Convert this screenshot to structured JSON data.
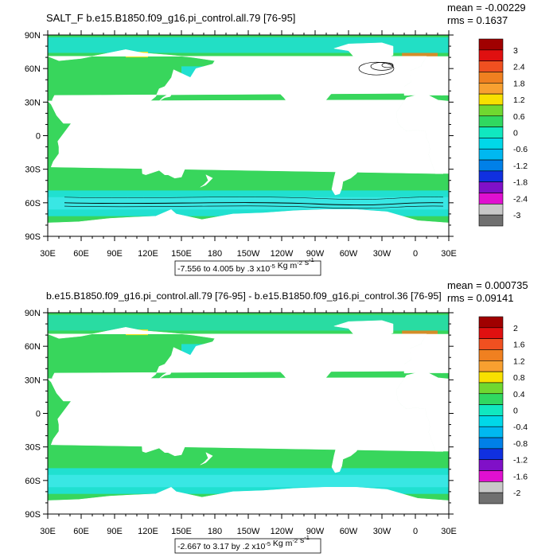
{
  "panels": [
    {
      "title": "SALT_F b.e15.B1850.f09_g16.pi_control.all.79 [76-95]",
      "mean": "mean = -0.00229",
      "rms": "rms = 0.1637",
      "range_note": "-7.556 to 4.005 by .3 x10",
      "units_tail": "Kg m",
      "units_exp": "-2",
      "units_s": "s",
      "legend_labels": [
        "3",
        "2.4",
        "1.8",
        "1.2",
        "0.6",
        "0",
        "-0.6",
        "-1.2",
        "-1.8",
        "-2.4",
        "-3"
      ]
    },
    {
      "title": "b.e15.B1850.f09_g16.pi_control.all.79 [76-95] - b.e15.B1850.f09_g16.pi_control.36 [76-95]",
      "mean": "mean = 0.000735",
      "rms": "rms = 0.09141",
      "range_note": "-2.667 to 3.17 by .2 x10",
      "units_tail": "Kg m",
      "units_exp": "-2",
      "units_s": "s",
      "legend_labels": [
        "2",
        "1.6",
        "1.2",
        "0.8",
        "0.4",
        "0",
        "-0.4",
        "-0.8",
        "-1.2",
        "-1.6",
        "-2"
      ]
    }
  ],
  "lat_labels": [
    "90N",
    "60N",
    "30N",
    "0",
    "30S",
    "60S",
    "90S"
  ],
  "lon_labels": [
    "30E",
    "60E",
    "90E",
    "120E",
    "150E",
    "180",
    "150W",
    "120W",
    "90W",
    "60W",
    "30W",
    "0",
    "30E"
  ],
  "exp_minus5": "-5",
  "exp_minus1": "-1",
  "legend_colors": [
    "#A00000",
    "#E01010",
    "#F05020",
    "#F08020",
    "#F8A030",
    "#F8E000",
    "#70D830",
    "#30D860",
    "#10E8C0",
    "#00D8E8",
    "#00B8F0",
    "#0080E8",
    "#1030E0",
    "#8010C8",
    "#E010D0",
    "#C8C8C8",
    "#707070"
  ],
  "map_colors": {
    "ocean": "#38D65C",
    "land": "#FFFFFF",
    "cyan": "#20E0D0",
    "cyan_light": "#40E8E8",
    "blue": "#1060E0",
    "deep": "#1020C0",
    "yellow": "#F0E020",
    "orange": "#F08020"
  }
}
